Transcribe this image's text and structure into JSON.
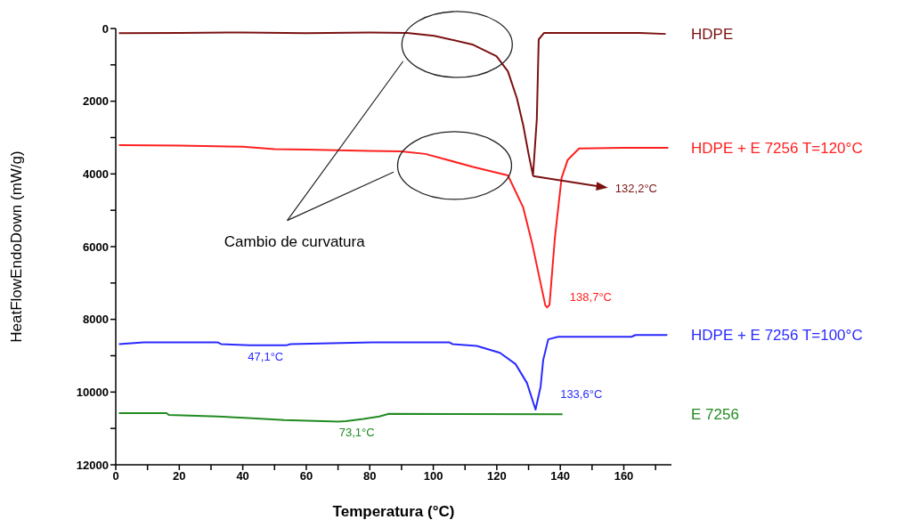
{
  "chart_data": {
    "type": "line",
    "xlabel": "Temperatura (°C)",
    "ylabel": "HeatFlowEndoDown (mW/g)",
    "xlim": [
      0,
      175
    ],
    "ylim": [
      12000,
      0
    ],
    "xticks": [
      0,
      {
        "value": 10,
        "label": null
      },
      20,
      {
        "value": 30,
        "label": null
      },
      40,
      {
        "value": 50,
        "label": null
      },
      60,
      {
        "value": 70,
        "label": null
      },
      80,
      {
        "value": 90,
        "label": null
      },
      100,
      {
        "value": 110,
        "label": null
      },
      120,
      {
        "value": 130,
        "label": null
      },
      140,
      {
        "value": 150,
        "label": null
      },
      160,
      {
        "value": 170,
        "label": null
      }
    ],
    "yticks": [
      0,
      {
        "value": 1000,
        "label": null
      },
      2000,
      {
        "value": 3000,
        "label": null
      },
      4000,
      {
        "value": 5000,
        "label": null
      },
      6000,
      {
        "value": 7000,
        "label": null
      },
      8000,
      {
        "value": 9000,
        "label": null
      },
      10000,
      {
        "value": 11000,
        "label": null
      },
      12000
    ],
    "grid": false,
    "legend": false,
    "marker": "none",
    "line_style": "solid",
    "series": [
      {
        "name": "HDPE",
        "color": "#7b1111",
        "x": [
          1,
          20,
          40,
          60,
          80,
          91.8,
          100.3,
          112.3,
          119.9,
          123.5,
          126.3,
          128.3,
          130,
          131.4,
          132.6,
          133.2,
          134.9,
          150,
          165,
          173.2
        ],
        "values": [
          130,
          120,
          110,
          130,
          110,
          120,
          200,
          440,
          760,
          1180,
          1910,
          2650,
          3450,
          4040,
          2500,
          300,
          120,
          120,
          120,
          150
        ]
      },
      {
        "name": "HDPE + E 7256 T=120°C",
        "color": "#ff2020",
        "x": [
          1,
          20,
          40,
          50,
          60,
          80,
          89.9,
          97.5,
          112.3,
          123.5,
          128.3,
          131.1,
          133.9,
          135.3,
          135.9,
          136.6,
          138.3,
          140.4,
          142.3,
          145.9,
          160,
          174
        ],
        "values": [
          3210,
          3220,
          3250,
          3320,
          3330,
          3370,
          3380,
          3450,
          3800,
          4040,
          4920,
          5900,
          7050,
          7620,
          7670,
          7600,
          5750,
          4110,
          3620,
          3300,
          3280,
          3280
        ]
      },
      {
        "name": "HDPE + E 7256 T=100°C",
        "color": "#2a2aff",
        "x": [
          1,
          8.8,
          32,
          33.2,
          42.3,
          53.9,
          55,
          80.7,
          105,
          106,
          113.7,
          121,
          125.9,
          129.5,
          132.2,
          133.8,
          134.6,
          136.2,
          139.3,
          162.4,
          163.7,
          173.7
        ],
        "values": [
          8680,
          8630,
          8630,
          8680,
          8710,
          8710,
          8680,
          8630,
          8630,
          8680,
          8730,
          8920,
          9230,
          9750,
          10480,
          9850,
          9125,
          8550,
          8480,
          8480,
          8430,
          8430
        ]
      },
      {
        "name": "E 7256",
        "color": "#228b22",
        "x": [
          1,
          16,
          16.7,
          32,
          43,
          53,
          70,
          72.5,
          78,
          83,
          86,
          140.7
        ],
        "values": [
          10580,
          10580,
          10630,
          10670,
          10720,
          10770,
          10810,
          10800,
          10740,
          10670,
          10600,
          10610
        ]
      }
    ],
    "annotations": [
      "132,2°C",
      "138,7°C",
      "47,1°C",
      "133,6°C",
      "73,1°C",
      "Cambio de curvatura"
    ]
  }
}
